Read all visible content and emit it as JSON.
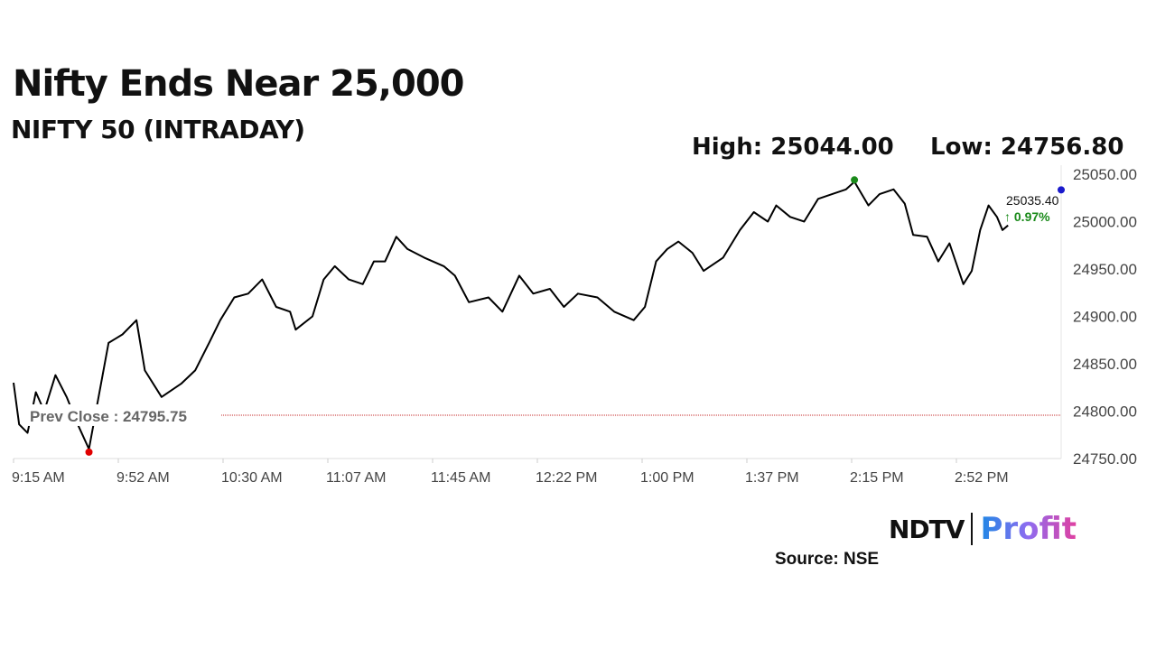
{
  "title": "Nifty Ends Near 25,000",
  "subtitle": "NIFTY 50 (INTRADAY)",
  "high_label": "High: 25044.00",
  "low_label": "Low: 24756.80",
  "last_value": "25035.40",
  "change": "↑ 0.97%",
  "prev_close_label": "Prev Close : 24795.75",
  "source": "Source: NSE",
  "logo": {
    "left": "NDTV",
    "right": "Profit"
  },
  "colors": {
    "line": "#000000",
    "high": "#1a8a1a",
    "low": "#e00000",
    "prevclose": "#c62828",
    "change": "#1a8a1a",
    "last": "#1a1acc"
  },
  "chart_data": {
    "type": "line",
    "title": "NIFTY 50 (INTRADAY)",
    "xlabel": "",
    "ylabel": "",
    "x_unit": "minutes since 9:15 AM",
    "xlim": [
      0,
      375
    ],
    "ylim": [
      24750,
      25050
    ],
    "yticks": [
      "24750.00",
      "24800.00",
      "24850.00",
      "24900.00",
      "24950.00",
      "25000.00",
      "25050.00"
    ],
    "ytick_values": [
      24750,
      24800,
      24850,
      24900,
      24950,
      25000,
      25050
    ],
    "xticks": [
      "9:15 AM",
      "9:52 AM",
      "10:30 AM",
      "11:07 AM",
      "11:45 AM",
      "12:22 PM",
      "1:00 PM",
      "1:37 PM",
      "2:15 PM",
      "2:52 PM"
    ],
    "xtick_values": [
      0,
      37.5,
      75,
      112.5,
      150,
      187.5,
      225,
      262.5,
      300,
      337.5
    ],
    "prev_close": 24795.75,
    "high": {
      "x": 301,
      "y": 25044.0
    },
    "low": {
      "x": 27,
      "y": 24756.8
    },
    "last": {
      "x": 375,
      "y": 25035.4
    },
    "series": [
      {
        "name": "NIFTY 50",
        "x": [
          0,
          2,
          5,
          8,
          11,
          15,
          19,
          23,
          27,
          31,
          34,
          39,
          44,
          47,
          53,
          60,
          65,
          70,
          74,
          79,
          84,
          89,
          94,
          99,
          101,
          107,
          111,
          115,
          120,
          125,
          129,
          133,
          137,
          141,
          147,
          154,
          158,
          163,
          170,
          175,
          181,
          186,
          192,
          197,
          202,
          209,
          215,
          222,
          226,
          230,
          234,
          238,
          243,
          247,
          254,
          260,
          265,
          270,
          273,
          278,
          283,
          288,
          293,
          298,
          301,
          306,
          310,
          315,
          319,
          322,
          327,
          331,
          335,
          340,
          343,
          346,
          349,
          352,
          354,
          356
        ],
        "y": [
          24830,
          24786,
          24777,
          24820,
          24800,
          24838,
          24815,
          24786,
          24760,
          24824,
          24872,
          24881,
          24896,
          24843,
          24815,
          24829,
          24843,
          24872,
          24896,
          24920,
          24924,
          24939,
          24910,
          24905,
          24886,
          24900,
          24939,
          24953,
          24939,
          24934,
          24958,
          24958,
          24984,
          24971,
          24962,
          24953,
          24943,
          24915,
          24920,
          24905,
          24943,
          24924,
          24929,
          24910,
          24924,
          24920,
          24905,
          24896,
          24910,
          24958,
          24971,
          24979,
          24967,
          24948,
          24962,
          24991,
          25010,
          25000,
          25017,
          25005,
          25000,
          25024,
          25029,
          25034,
          25042,
          25017,
          25029,
          25034,
          25019,
          24986,
          24984,
          24958,
          24977,
          24934,
          24948,
          24991,
          25017,
          25005,
          24991,
          24996
        ]
      }
    ]
  }
}
